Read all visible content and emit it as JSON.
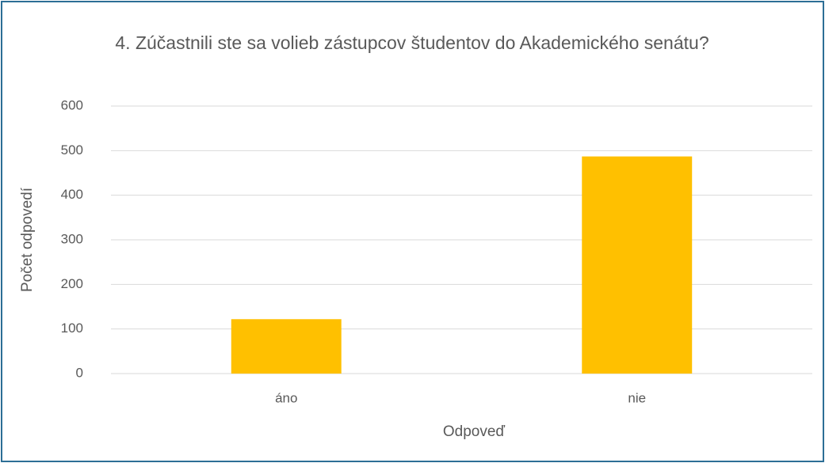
{
  "chart_data": {
    "type": "bar",
    "title": "4. Zúčastnili ste sa volieb zástupcov študentov do Akademického senátu?",
    "x_label": "Odpoveď",
    "y_label": "Počet odpovedí",
    "categories": [
      "áno",
      "nie"
    ],
    "values": [
      122,
      487
    ],
    "color": "#ffc000",
    "ylim": [
      0,
      600
    ],
    "yticks": [
      0,
      100,
      200,
      300,
      400,
      500,
      600
    ],
    "grid": true
  }
}
